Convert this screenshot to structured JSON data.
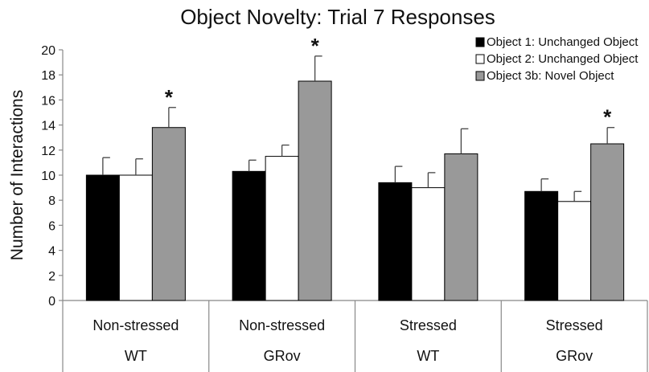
{
  "chart_data": {
    "type": "bar",
    "title": "Object Novelty: Trial 7 Responses",
    "ylabel": "Number of Interactions",
    "xlabel": "",
    "ylim": [
      0,
      20
    ],
    "yticks": [
      0,
      2,
      4,
      6,
      8,
      10,
      12,
      14,
      16,
      18,
      20
    ],
    "grid": false,
    "legend_position": "top-right",
    "categories": [
      {
        "condition": "Non-stressed",
        "genotype": "WT"
      },
      {
        "condition": "Non-stressed",
        "genotype": "GRov"
      },
      {
        "condition": "Stressed",
        "genotype": "WT"
      },
      {
        "condition": "Stressed",
        "genotype": "GRov"
      }
    ],
    "series": [
      {
        "name": "Object 1: Unchanged Object",
        "color": "#000000",
        "values": [
          10.0,
          10.3,
          9.4,
          8.7
        ],
        "errors": [
          1.4,
          0.9,
          1.3,
          1.0
        ]
      },
      {
        "name": "Object 2: Unchanged Object",
        "color": "#ffffff",
        "values": [
          10.0,
          11.5,
          9.0,
          7.9
        ],
        "errors": [
          1.3,
          0.9,
          1.2,
          0.8
        ]
      },
      {
        "name": "Object 3b: Novel Object",
        "color": "#999999",
        "values": [
          13.8,
          17.5,
          11.7,
          12.5
        ],
        "errors": [
          1.6,
          2.0,
          2.0,
          1.3
        ]
      }
    ],
    "annotations": [
      {
        "text": "*",
        "category_index": 0,
        "series_index": 2
      },
      {
        "text": "*",
        "category_index": 1,
        "series_index": 2
      },
      {
        "text": "*",
        "category_index": 3,
        "series_index": 2
      }
    ]
  }
}
